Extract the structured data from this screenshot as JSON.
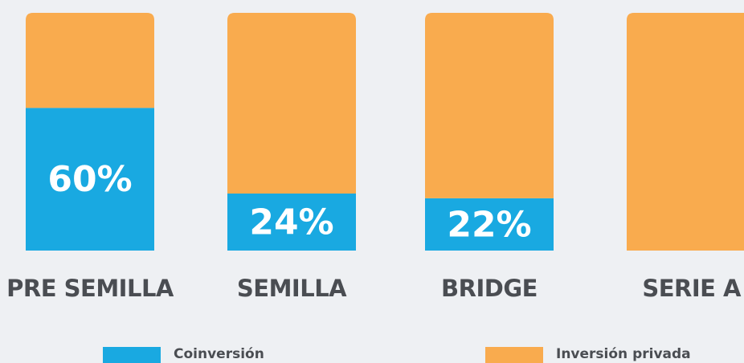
{
  "chart_data": {
    "type": "stacked_bar",
    "categories": [
      "PRE SEMILLA",
      "SEMILLA",
      "BRIDGE",
      "SERIE A"
    ],
    "series": [
      {
        "name": "Coinversión",
        "color": "#19a9e1",
        "values": [
          60,
          24,
          22,
          0
        ],
        "value_labels": [
          "60%",
          "24%",
          "22%",
          null
        ]
      },
      {
        "name": "Inversión privada",
        "color": "#f9ab4e",
        "values": [
          40,
          76,
          78,
          100
        ]
      }
    ],
    "ylim": [
      0,
      100
    ]
  }
}
